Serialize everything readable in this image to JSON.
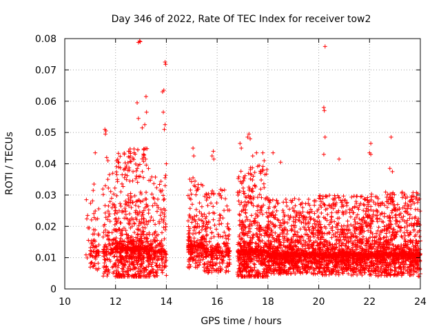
{
  "chart_data": {
    "type": "scatter",
    "title": "Day 346 of 2022, Rate Of TEC Index for receiver tow2",
    "xlabel": "GPS time / hours",
    "ylabel": "ROTI / TECUs",
    "xlim": [
      10,
      24
    ],
    "ylim": [
      0,
      0.08
    ],
    "x_ticks": [
      "10",
      "12",
      "14",
      "16",
      "18",
      "20",
      "22",
      "24"
    ],
    "y_ticks": [
      "0",
      "0.01",
      "0.02",
      "0.03",
      "0.04",
      "0.05",
      "0.06",
      "0.07",
      "0.08"
    ],
    "grid": true,
    "marker": "+",
    "color": "#ff0000",
    "clusters": [
      {
        "x_range": [
          10.8,
          11.0
        ],
        "y_base": 0.011,
        "y_spread": 0.014,
        "count": 6
      },
      {
        "x_range": [
          11.0,
          11.35
        ],
        "y_base": 0.012,
        "y_spread": 0.018,
        "count": 70
      },
      {
        "x_range": [
          11.5,
          11.95
        ],
        "y_base": 0.012,
        "y_spread": 0.025,
        "count": 110
      },
      {
        "x_range": [
          11.95,
          13.4
        ],
        "y_base": 0.013,
        "y_spread": 0.032,
        "count": 750
      },
      {
        "x_range": [
          13.4,
          14.0
        ],
        "y_base": 0.012,
        "y_spread": 0.025,
        "count": 180
      },
      {
        "x_range": [
          14.85,
          15.5
        ],
        "y_base": 0.014,
        "y_spread": 0.022,
        "count": 230
      },
      {
        "x_range": [
          15.5,
          16.5
        ],
        "y_base": 0.012,
        "y_spread": 0.02,
        "count": 270
      },
      {
        "x_range": [
          16.8,
          18.0
        ],
        "y_base": 0.012,
        "y_spread": 0.028,
        "count": 620
      },
      {
        "x_range": [
          18.0,
          20.0
        ],
        "y_base": 0.011,
        "y_spread": 0.018,
        "count": 950
      },
      {
        "x_range": [
          20.0,
          22.0
        ],
        "y_base": 0.011,
        "y_spread": 0.019,
        "count": 1000
      },
      {
        "x_range": [
          22.0,
          24.0
        ],
        "y_base": 0.011,
        "y_spread": 0.02,
        "count": 1000
      }
    ],
    "highlights": [
      {
        "x": 12.9,
        "y": 0.0788
      },
      {
        "x": 12.95,
        "y": 0.0792
      },
      {
        "x": 12.97,
        "y": 0.079
      },
      {
        "x": 13.95,
        "y": 0.0725
      },
      {
        "x": 13.97,
        "y": 0.0718
      },
      {
        "x": 13.9,
        "y": 0.0635
      },
      {
        "x": 13.85,
        "y": 0.063
      },
      {
        "x": 13.88,
        "y": 0.0565
      },
      {
        "x": 12.85,
        "y": 0.0595
      },
      {
        "x": 13.2,
        "y": 0.0615
      },
      {
        "x": 13.22,
        "y": 0.0565
      },
      {
        "x": 12.9,
        "y": 0.0545
      },
      {
        "x": 13.15,
        "y": 0.0525
      },
      {
        "x": 13.05,
        "y": 0.0515
      },
      {
        "x": 13.95,
        "y": 0.0525
      },
      {
        "x": 13.92,
        "y": 0.051
      },
      {
        "x": 11.58,
        "y": 0.051
      },
      {
        "x": 11.62,
        "y": 0.0505
      },
      {
        "x": 11.6,
        "y": 0.0495
      },
      {
        "x": 11.65,
        "y": 0.042
      },
      {
        "x": 11.7,
        "y": 0.041
      },
      {
        "x": 20.25,
        "y": 0.0775
      },
      {
        "x": 20.2,
        "y": 0.058
      },
      {
        "x": 20.22,
        "y": 0.057
      },
      {
        "x": 20.25,
        "y": 0.0485
      },
      {
        "x": 20.2,
        "y": 0.043
      },
      {
        "x": 17.25,
        "y": 0.0495
      },
      {
        "x": 17.2,
        "y": 0.0485
      },
      {
        "x": 17.3,
        "y": 0.048
      },
      {
        "x": 16.9,
        "y": 0.0465
      },
      {
        "x": 16.95,
        "y": 0.045
      },
      {
        "x": 17.4,
        "y": 0.0425
      },
      {
        "x": 17.55,
        "y": 0.0435
      },
      {
        "x": 17.8,
        "y": 0.0435
      },
      {
        "x": 18.2,
        "y": 0.0435
      },
      {
        "x": 17.85,
        "y": 0.041
      },
      {
        "x": 18.5,
        "y": 0.0405
      },
      {
        "x": 20.8,
        "y": 0.0415
      },
      {
        "x": 22.05,
        "y": 0.0465
      },
      {
        "x": 22.0,
        "y": 0.0435
      },
      {
        "x": 22.05,
        "y": 0.043
      },
      {
        "x": 22.85,
        "y": 0.0485
      },
      {
        "x": 22.8,
        "y": 0.0385
      },
      {
        "x": 22.9,
        "y": 0.0375
      },
      {
        "x": 15.05,
        "y": 0.045
      },
      {
        "x": 15.08,
        "y": 0.0425
      },
      {
        "x": 15.85,
        "y": 0.044
      },
      {
        "x": 15.8,
        "y": 0.0425
      },
      {
        "x": 15.87,
        "y": 0.0415
      },
      {
        "x": 15.05,
        "y": 0.0355
      },
      {
        "x": 14.0,
        "y": 0.04
      },
      {
        "x": 13.95,
        "y": 0.0355
      },
      {
        "x": 11.2,
        "y": 0.0435
      },
      {
        "x": 11.15,
        "y": 0.0335
      },
      {
        "x": 11.12,
        "y": 0.0315
      },
      {
        "x": 10.85,
        "y": 0.0285
      },
      {
        "x": 10.9,
        "y": 0.0235
      },
      {
        "x": 10.92,
        "y": 0.0195
      },
      {
        "x": 12.95,
        "y": 0.0045
      },
      {
        "x": 13.3,
        "y": 0.0045
      },
      {
        "x": 11.65,
        "y": 0.006
      }
    ]
  }
}
